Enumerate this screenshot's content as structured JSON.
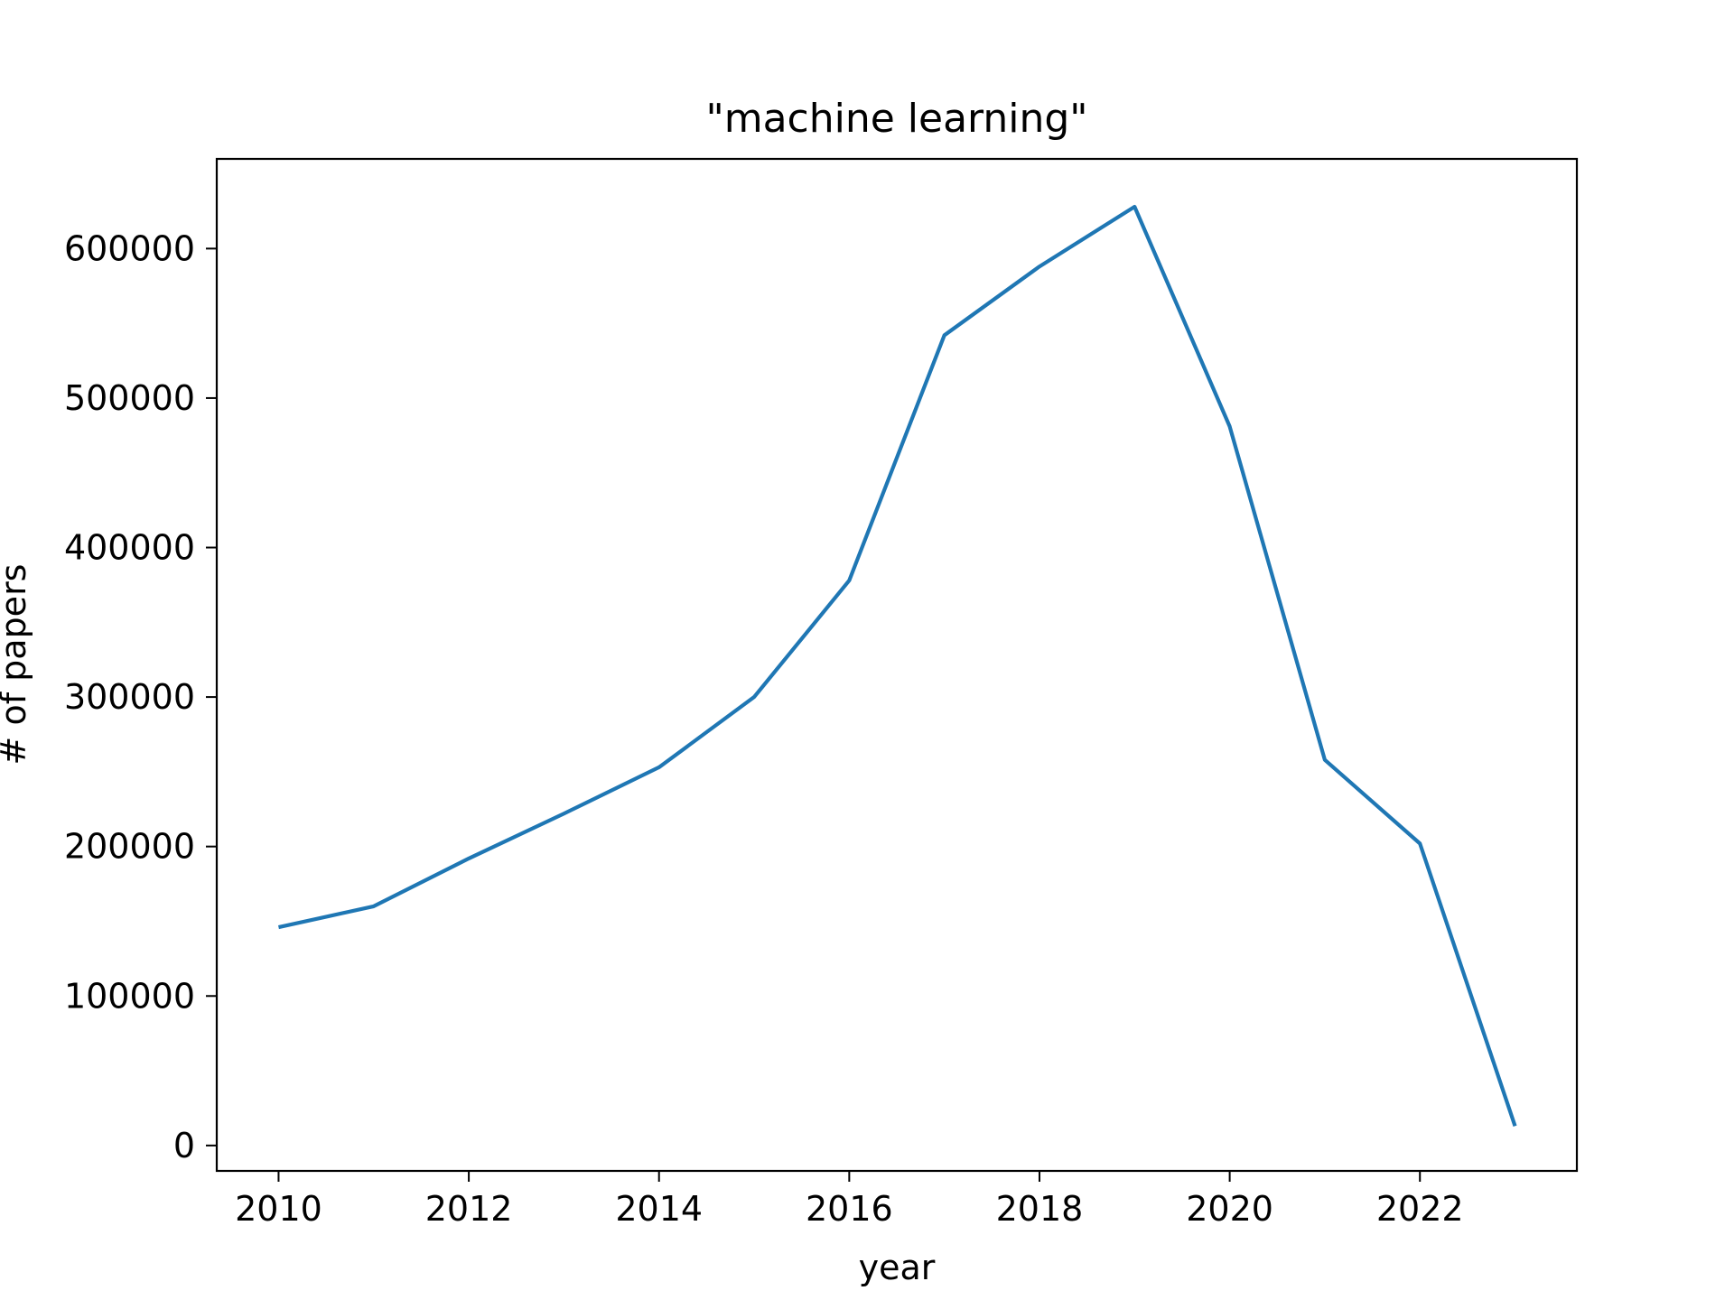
{
  "chart_data": {
    "type": "line",
    "title": "\"machine learning\"",
    "xlabel": "year",
    "ylabel": "# of papers",
    "xlim": [
      2009.35,
      2023.65
    ],
    "ylim": [
      -17000,
      660000
    ],
    "x_ticks": [
      2010,
      2012,
      2014,
      2016,
      2018,
      2020,
      2022
    ],
    "y_ticks": [
      0,
      100000,
      200000,
      300000,
      400000,
      500000,
      600000
    ],
    "grid": false,
    "legend": "none",
    "series": [
      {
        "color": "#1f77b4",
        "x": [
          2010,
          2011,
          2012,
          2013,
          2014,
          2015,
          2016,
          2017,
          2018,
          2019,
          2020,
          2021,
          2022,
          2023
        ],
        "y": [
          146000,
          160000,
          192000,
          222000,
          253000,
          300000,
          378000,
          542000,
          588000,
          628000,
          481000,
          258000,
          202000,
          13000
        ]
      }
    ]
  }
}
